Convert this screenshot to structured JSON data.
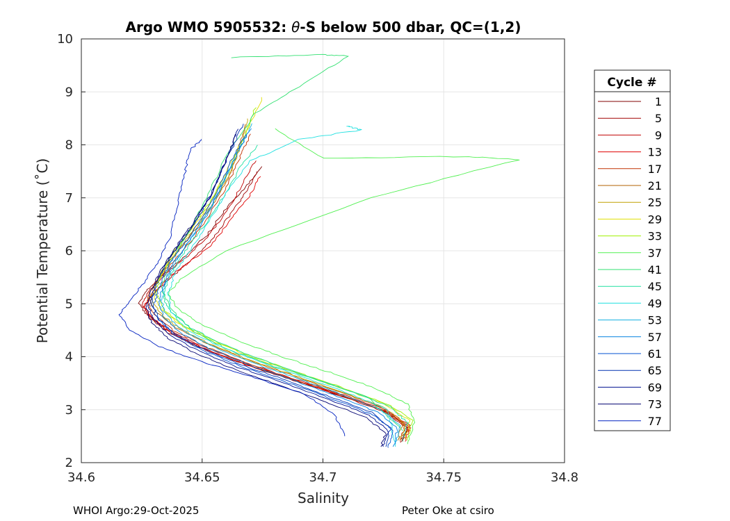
{
  "chart_data": {
    "type": "line",
    "title_pre": "Argo WMO 5905532: ",
    "title_theta": "θ",
    "title_post": "-S below 500 dbar,  QC=(1,2)",
    "xlabel": "Salinity",
    "ylabel": "Potential Temperature (˚C)",
    "xlim": [
      34.6,
      34.8
    ],
    "ylim": [
      2,
      10
    ],
    "xticks": [
      "34.6",
      "34.65",
      "34.7",
      "34.75",
      "34.8"
    ],
    "yticks": [
      "2",
      "3",
      "4",
      "5",
      "6",
      "7",
      "8",
      "9",
      "10"
    ],
    "grid": true,
    "legend_title": "Cycle #",
    "legend_position": "right",
    "series": [
      {
        "name": "1",
        "color": "#800000",
        "x": [
          34.675,
          34.668,
          34.66,
          34.652,
          34.643,
          34.635,
          34.628,
          34.624,
          34.627,
          34.635,
          34.648,
          34.665,
          34.685,
          34.705,
          34.725,
          34.735,
          34.733
        ],
        "y": [
          7.6,
          7.2,
          6.8,
          6.3,
          5.9,
          5.6,
          5.3,
          5.0,
          4.8,
          4.5,
          4.2,
          3.9,
          3.6,
          3.3,
          3.0,
          2.7,
          2.4
        ]
      },
      {
        "name": "5",
        "color": "#a00000",
        "x": [
          34.673,
          34.668,
          34.662,
          34.654,
          34.645,
          34.637,
          34.63,
          34.626,
          34.628,
          34.636,
          34.65,
          34.668,
          34.688,
          34.708,
          34.726,
          34.735,
          34.732
        ],
        "y": [
          7.5,
          7.1,
          6.7,
          6.2,
          5.8,
          5.5,
          5.2,
          4.95,
          4.75,
          4.45,
          4.15,
          3.85,
          3.55,
          3.25,
          2.95,
          2.65,
          2.38
        ]
      },
      {
        "name": "9",
        "color": "#c00000",
        "x": [
          34.672,
          34.667,
          34.661,
          34.653,
          34.644,
          34.636,
          34.629,
          34.625,
          34.628,
          34.636,
          34.65,
          34.667,
          34.687,
          34.707,
          34.726,
          34.736,
          34.733
        ],
        "y": [
          7.7,
          7.3,
          6.8,
          6.3,
          5.9,
          5.6,
          5.3,
          5.0,
          4.8,
          4.5,
          4.2,
          3.9,
          3.6,
          3.3,
          3.0,
          2.7,
          2.4
        ]
      },
      {
        "name": "13",
        "color": "#e00000",
        "x": [
          34.674,
          34.669,
          34.662,
          34.654,
          34.645,
          34.636,
          34.63,
          34.626,
          34.629,
          34.637,
          34.651,
          34.668,
          34.689,
          34.709,
          34.727,
          34.736,
          34.734
        ],
        "y": [
          7.4,
          7.0,
          6.6,
          6.1,
          5.8,
          5.5,
          5.2,
          4.95,
          4.75,
          4.45,
          4.15,
          3.85,
          3.55,
          3.25,
          2.95,
          2.65,
          2.4
        ]
      },
      {
        "name": "17",
        "color": "#c03000",
        "x": [
          34.67,
          34.666,
          34.66,
          34.652,
          34.644,
          34.636,
          34.63,
          34.627,
          34.63,
          34.638,
          34.651,
          34.667,
          34.686,
          34.706,
          34.724,
          34.734,
          34.732
        ],
        "y": [
          8.2,
          7.8,
          7.2,
          6.6,
          6.1,
          5.7,
          5.35,
          5.05,
          4.8,
          4.5,
          4.2,
          3.9,
          3.6,
          3.3,
          3.0,
          2.7,
          2.4
        ]
      },
      {
        "name": "21",
        "color": "#b06000",
        "x": [
          34.668,
          34.665,
          34.66,
          34.652,
          34.644,
          34.636,
          34.631,
          34.628,
          34.631,
          34.639,
          34.652,
          34.668,
          34.687,
          34.706,
          34.724,
          34.733,
          34.731
        ],
        "y": [
          8.4,
          7.9,
          7.3,
          6.7,
          6.2,
          5.8,
          5.4,
          5.1,
          4.85,
          4.55,
          4.25,
          3.95,
          3.65,
          3.35,
          3.05,
          2.75,
          2.42
        ]
      },
      {
        "name": "25",
        "color": "#c0a000",
        "x": [
          34.669,
          34.666,
          34.661,
          34.653,
          34.645,
          34.637,
          34.632,
          34.629,
          34.632,
          34.64,
          34.653,
          34.669,
          34.688,
          34.707,
          34.725,
          34.734,
          34.732
        ],
        "y": [
          8.5,
          8.0,
          7.4,
          6.8,
          6.3,
          5.85,
          5.45,
          5.1,
          4.85,
          4.55,
          4.25,
          3.95,
          3.65,
          3.35,
          3.05,
          2.75,
          2.42
        ]
      },
      {
        "name": "29",
        "color": "#e0e000",
        "x": [
          34.675,
          34.668,
          34.66,
          34.652,
          34.644,
          34.637,
          34.632,
          34.63,
          34.633,
          34.641,
          34.654,
          34.67,
          34.689,
          34.708,
          34.726,
          34.736,
          34.734
        ],
        "y": [
          8.9,
          8.2,
          7.5,
          6.8,
          6.3,
          5.9,
          5.5,
          5.15,
          4.9,
          4.6,
          4.3,
          4.0,
          3.7,
          3.4,
          3.1,
          2.8,
          2.45
        ]
      },
      {
        "name": "33",
        "color": "#a0f000",
        "x": [
          34.672,
          34.667,
          34.661,
          34.653,
          34.645,
          34.638,
          34.633,
          34.631,
          34.634,
          34.642,
          34.655,
          34.671,
          34.69,
          34.709,
          34.727,
          34.737,
          34.735
        ],
        "y": [
          8.7,
          8.1,
          7.5,
          6.9,
          6.4,
          5.95,
          5.55,
          5.2,
          4.9,
          4.6,
          4.3,
          4.0,
          3.7,
          3.4,
          3.1,
          2.8,
          2.42
        ]
      },
      {
        "name": "37",
        "color": "#50f050",
        "x": [
          34.68,
          34.7,
          34.76,
          34.781,
          34.72,
          34.66,
          34.642,
          34.636,
          34.64,
          34.65,
          34.665,
          34.683,
          34.703,
          34.722,
          34.735,
          34.738,
          34.735
        ],
        "y": [
          8.3,
          7.75,
          7.78,
          7.72,
          7.0,
          6.0,
          5.5,
          5.2,
          4.9,
          4.6,
          4.3,
          4.0,
          3.7,
          3.4,
          3.1,
          2.8,
          2.35
        ]
      },
      {
        "name": "41",
        "color": "#30e070",
        "x": [
          34.662,
          34.7,
          34.711,
          34.69,
          34.672,
          34.66,
          34.652,
          34.644,
          34.637,
          34.633,
          34.637,
          34.646,
          34.66,
          34.678,
          34.698,
          34.718,
          34.733
        ],
        "y": [
          9.65,
          9.7,
          9.68,
          9.1,
          8.6,
          7.8,
          7.0,
          6.3,
          5.8,
          5.3,
          4.9,
          4.5,
          4.15,
          3.85,
          3.55,
          3.25,
          2.6
        ]
      },
      {
        "name": "45",
        "color": "#20e0a0",
        "x": [
          34.673,
          34.666,
          34.66,
          34.653,
          34.646,
          34.64,
          34.636,
          34.634,
          34.637,
          34.645,
          34.658,
          34.674,
          34.693,
          34.711,
          34.728,
          34.735,
          34.733
        ],
        "y": [
          8.0,
          7.6,
          7.1,
          6.6,
          6.2,
          5.8,
          5.45,
          5.1,
          4.85,
          4.55,
          4.25,
          3.95,
          3.65,
          3.35,
          3.05,
          2.75,
          2.4
        ]
      },
      {
        "name": "49",
        "color": "#20e0e0",
        "x": [
          34.71,
          34.716,
          34.69,
          34.67,
          34.66,
          34.652,
          34.645,
          34.639,
          34.636,
          34.637,
          34.644,
          34.657,
          34.674,
          34.693,
          34.711,
          34.727,
          34.73
        ],
        "y": [
          8.35,
          8.28,
          8.1,
          7.7,
          7.1,
          6.5,
          6.0,
          5.6,
          5.2,
          4.85,
          4.5,
          4.2,
          3.9,
          3.6,
          3.3,
          3.0,
          2.3
        ]
      },
      {
        "name": "53",
        "color": "#10b0e0",
        "x": [
          34.671,
          34.665,
          34.659,
          34.652,
          34.645,
          34.639,
          34.635,
          34.633,
          34.635,
          34.642,
          34.654,
          34.67,
          34.689,
          34.707,
          34.724,
          34.732,
          34.73
        ],
        "y": [
          8.4,
          7.9,
          7.3,
          6.7,
          6.2,
          5.8,
          5.4,
          5.05,
          4.8,
          4.5,
          4.2,
          3.9,
          3.6,
          3.3,
          3.0,
          2.7,
          2.35
        ]
      },
      {
        "name": "57",
        "color": "#0080e0",
        "x": [
          34.67,
          34.664,
          34.658,
          34.651,
          34.644,
          34.638,
          34.634,
          34.632,
          34.634,
          34.641,
          34.653,
          34.669,
          34.688,
          34.706,
          34.723,
          34.731,
          34.729
        ],
        "y": [
          8.3,
          7.8,
          7.2,
          6.6,
          6.15,
          5.75,
          5.35,
          5.0,
          4.75,
          4.45,
          4.15,
          3.85,
          3.55,
          3.25,
          2.95,
          2.65,
          2.3
        ]
      },
      {
        "name": "61",
        "color": "#0050d0",
        "x": [
          34.668,
          34.662,
          34.656,
          34.649,
          34.642,
          34.636,
          34.632,
          34.63,
          34.632,
          34.639,
          34.651,
          34.667,
          34.686,
          34.704,
          34.721,
          34.729,
          34.727
        ],
        "y": [
          8.2,
          7.7,
          7.1,
          6.55,
          6.1,
          5.7,
          5.3,
          4.95,
          4.7,
          4.4,
          4.1,
          3.8,
          3.5,
          3.2,
          2.9,
          2.6,
          2.28
        ]
      },
      {
        "name": "65",
        "color": "#0030b0",
        "x": [
          34.667,
          34.661,
          34.655,
          34.648,
          34.641,
          34.635,
          34.631,
          34.629,
          34.631,
          34.638,
          34.65,
          34.666,
          34.685,
          34.703,
          34.72,
          34.728,
          34.726
        ],
        "y": [
          8.4,
          7.8,
          7.2,
          6.6,
          6.15,
          5.75,
          5.35,
          5.0,
          4.75,
          4.45,
          4.15,
          3.85,
          3.55,
          3.25,
          2.95,
          2.65,
          2.3
        ]
      },
      {
        "name": "69",
        "color": "#001090",
        "x": [
          34.665,
          34.66,
          34.654,
          34.647,
          34.64,
          34.634,
          34.63,
          34.628,
          34.63,
          34.637,
          34.649,
          34.665,
          34.684,
          34.702,
          34.719,
          34.727,
          34.725
        ],
        "y": [
          8.3,
          7.7,
          7.1,
          6.55,
          6.1,
          5.7,
          5.3,
          4.95,
          4.7,
          4.4,
          4.1,
          3.8,
          3.5,
          3.2,
          2.9,
          2.6,
          2.3
        ]
      },
      {
        "name": "73",
        "color": "#000070",
        "x": [
          34.664,
          34.659,
          34.653,
          34.646,
          34.639,
          34.633,
          34.629,
          34.627,
          34.629,
          34.636,
          34.648,
          34.664,
          34.683,
          34.701,
          34.718,
          34.726,
          34.724
        ],
        "y": [
          8.2,
          7.6,
          7.0,
          6.5,
          6.05,
          5.65,
          5.25,
          4.9,
          4.65,
          4.35,
          4.05,
          3.75,
          3.45,
          3.15,
          2.85,
          2.55,
          2.3
        ]
      },
      {
        "name": "77",
        "color": "#0020c0",
        "x": [
          34.65,
          34.645,
          34.643,
          34.64,
          34.637,
          34.632,
          34.626,
          34.619,
          34.616,
          34.62,
          34.632,
          34.65,
          34.672,
          34.692,
          34.705,
          34.709
        ],
        "y": [
          8.1,
          7.9,
          7.5,
          6.9,
          6.3,
          5.8,
          5.4,
          5.0,
          4.8,
          4.5,
          4.2,
          3.9,
          3.6,
          3.3,
          2.9,
          2.5
        ]
      }
    ]
  },
  "footer": {
    "left": "WHOI Argo:29-Oct-2025",
    "right": "Peter Oke at csiro"
  }
}
